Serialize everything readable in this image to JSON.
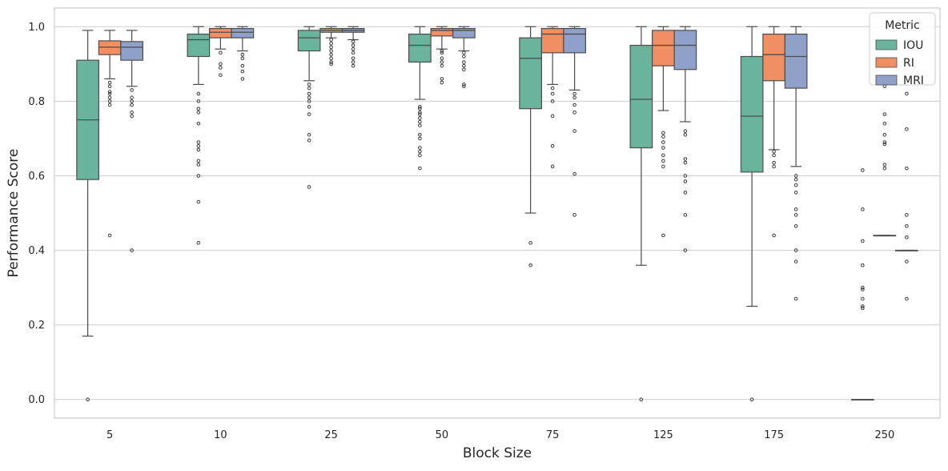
{
  "chart_data": {
    "type": "box",
    "xlabel": "Block Size",
    "ylabel": "Performance Score",
    "categories": [
      "5",
      "10",
      "25",
      "50",
      "75",
      "125",
      "175",
      "250"
    ],
    "ylim": [
      -0.05,
      1.05
    ],
    "yticks": [
      "0.0",
      "0.2",
      "0.4",
      "0.6",
      "0.8",
      "1.0"
    ],
    "grid": "horizontal",
    "legend": {
      "title": "Metric",
      "placement": "top-right"
    },
    "series": [
      {
        "name": "IOU",
        "color": "#6ab49d",
        "boxes": [
          {
            "category": "5",
            "whislo": 0.17,
            "q1": 0.59,
            "med": 0.75,
            "q3": 0.91,
            "whishi": 0.99,
            "fliers": [
              0.0
            ]
          },
          {
            "category": "10",
            "whislo": 0.845,
            "q1": 0.92,
            "med": 0.965,
            "q3": 0.98,
            "whishi": 1.0,
            "fliers": [
              0.82,
              0.8,
              0.78,
              0.77,
              0.74,
              0.69,
              0.68,
              0.67,
              0.64,
              0.63,
              0.6,
              0.53,
              0.42
            ]
          },
          {
            "category": "25",
            "whislo": 0.855,
            "q1": 0.935,
            "med": 0.97,
            "q3": 0.99,
            "whishi": 1.0,
            "fliers": [
              0.845,
              0.835,
              0.82,
              0.81,
              0.8,
              0.785,
              0.765,
              0.71,
              0.695,
              0.57
            ]
          },
          {
            "category": "50",
            "whislo": 0.805,
            "q1": 0.905,
            "med": 0.95,
            "q3": 0.98,
            "whishi": 1.0,
            "fliers": [
              0.785,
              0.78,
              0.77,
              0.765,
              0.755,
              0.745,
              0.735,
              0.71,
              0.7,
              0.675,
              0.665,
              0.655,
              0.62
            ]
          },
          {
            "category": "75",
            "whislo": 0.5,
            "q1": 0.78,
            "med": 0.915,
            "q3": 0.97,
            "whishi": 1.0,
            "fliers": [
              0.42,
              0.36
            ]
          },
          {
            "category": "125",
            "whislo": 0.36,
            "q1": 0.675,
            "med": 0.805,
            "q3": 0.95,
            "whishi": 1.0,
            "fliers": [
              0.0
            ]
          },
          {
            "category": "175",
            "whislo": 0.25,
            "q1": 0.61,
            "med": 0.76,
            "q3": 0.92,
            "whishi": 1.0,
            "fliers": [
              0.0
            ]
          },
          {
            "category": "250",
            "whislo": 0.0,
            "q1": 0.0,
            "med": 0.0,
            "q3": 0.0,
            "whishi": 0.0,
            "fliers": [
              0.615,
              0.51,
              0.425,
              0.36,
              0.3,
              0.295,
              0.27,
              0.25,
              0.245
            ]
          }
        ]
      },
      {
        "name": "RI",
        "color": "#f08e64",
        "boxes": [
          {
            "category": "5",
            "whislo": 0.86,
            "q1": 0.925,
            "med": 0.945,
            "q3": 0.962,
            "whishi": 0.99,
            "fliers": [
              0.85,
              0.84,
              0.825,
              0.82,
              0.81,
              0.8,
              0.79,
              0.44
            ]
          },
          {
            "category": "10",
            "whislo": 0.94,
            "q1": 0.97,
            "med": 0.985,
            "q3": 0.995,
            "whishi": 1.0,
            "fliers": [
              0.93,
              0.9,
              0.89,
              0.87
            ]
          },
          {
            "category": "25",
            "whislo": 0.97,
            "q1": 0.985,
            "med": 0.99,
            "q3": 0.995,
            "whishi": 1.0,
            "fliers": [
              0.965,
              0.955,
              0.945,
              0.935,
              0.925,
              0.915,
              0.905,
              0.9
            ]
          },
          {
            "category": "50",
            "whislo": 0.94,
            "q1": 0.975,
            "med": 0.99,
            "q3": 0.995,
            "whishi": 1.0,
            "fliers": [
              0.935,
              0.93,
              0.915,
              0.905,
              0.895,
              0.86,
              0.85
            ]
          },
          {
            "category": "75",
            "whislo": 0.845,
            "q1": 0.93,
            "med": 0.98,
            "q3": 0.995,
            "whishi": 1.0,
            "fliers": [
              0.835,
              0.82,
              0.8,
              0.76,
              0.68,
              0.625
            ]
          },
          {
            "category": "125",
            "whislo": 0.775,
            "q1": 0.895,
            "med": 0.95,
            "q3": 0.99,
            "whishi": 1.0,
            "fliers": [
              0.715,
              0.705,
              0.69,
              0.675,
              0.655,
              0.64,
              0.625,
              0.44
            ]
          },
          {
            "category": "175",
            "whislo": 0.67,
            "q1": 0.855,
            "med": 0.925,
            "q3": 0.98,
            "whishi": 1.0,
            "fliers": [
              0.665,
              0.655,
              0.635,
              0.625,
              0.44
            ]
          },
          {
            "category": "250",
            "whislo": 0.44,
            "q1": 0.44,
            "med": 0.44,
            "q3": 0.44,
            "whishi": 0.44,
            "fliers": [
              0.84,
              0.765,
              0.74,
              0.71,
              0.69,
              0.685,
              0.63,
              0.62
            ]
          }
        ]
      },
      {
        "name": "MRI",
        "color": "#8fa0c9",
        "boxes": [
          {
            "category": "5",
            "whislo": 0.84,
            "q1": 0.91,
            "med": 0.945,
            "q3": 0.96,
            "whishi": 0.99,
            "fliers": [
              0.83,
              0.81,
              0.8,
              0.79,
              0.77,
              0.76,
              0.4
            ]
          },
          {
            "category": "10",
            "whislo": 0.935,
            "q1": 0.97,
            "med": 0.985,
            "q3": 0.995,
            "whishi": 1.0,
            "fliers": [
              0.925,
              0.915,
              0.895,
              0.88,
              0.86
            ]
          },
          {
            "category": "25",
            "whislo": 0.965,
            "q1": 0.985,
            "med": 0.99,
            "q3": 0.995,
            "whishi": 1.0,
            "fliers": [
              0.96,
              0.95,
              0.94,
              0.93,
              0.915,
              0.905,
              0.895
            ]
          },
          {
            "category": "50",
            "whislo": 0.935,
            "q1": 0.97,
            "med": 0.99,
            "q3": 0.995,
            "whishi": 1.0,
            "fliers": [
              0.93,
              0.92,
              0.905,
              0.895,
              0.885,
              0.845,
              0.84
            ]
          },
          {
            "category": "75",
            "whislo": 0.83,
            "q1": 0.93,
            "med": 0.98,
            "q3": 0.995,
            "whishi": 1.0,
            "fliers": [
              0.82,
              0.81,
              0.79,
              0.77,
              0.72,
              0.605,
              0.495
            ]
          },
          {
            "category": "125",
            "whislo": 0.745,
            "q1": 0.885,
            "med": 0.95,
            "q3": 0.99,
            "whishi": 1.0,
            "fliers": [
              0.72,
              0.71,
              0.645,
              0.635,
              0.6,
              0.585,
              0.555,
              0.495,
              0.4
            ]
          },
          {
            "category": "175",
            "whislo": 0.625,
            "q1": 0.835,
            "med": 0.92,
            "q3": 0.98,
            "whishi": 1.0,
            "fliers": [
              0.6,
              0.59,
              0.575,
              0.555,
              0.51,
              0.495,
              0.465,
              0.4,
              0.37,
              0.27
            ]
          },
          {
            "category": "250",
            "whislo": 0.4,
            "q1": 0.4,
            "med": 0.4,
            "q3": 0.4,
            "whishi": 0.4,
            "fliers": [
              0.82,
              0.725,
              0.62,
              0.495,
              0.465,
              0.435,
              0.37,
              0.27
            ]
          }
        ]
      }
    ]
  }
}
